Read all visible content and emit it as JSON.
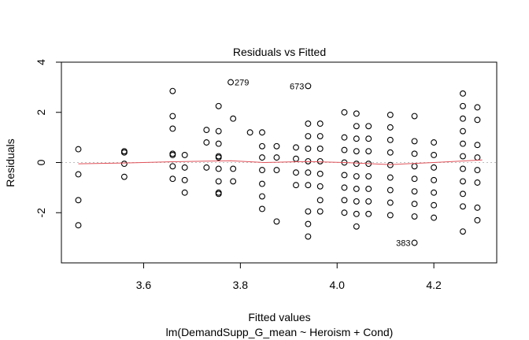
{
  "chart_data": {
    "type": "scatter",
    "title": "Residuals vs Fitted",
    "xlabel": "Fitted values",
    "subtitle": "lm(DemandSupp_G_mean ~ Heroism + Cond)",
    "ylabel": "Residuals",
    "xlim": [
      3.43,
      4.33
    ],
    "ylim": [
      -4.0,
      4.0
    ],
    "x_ticks": [
      3.6,
      3.8,
      4.0,
      4.2
    ],
    "x_tick_labels": [
      "3.6",
      "3.8",
      "4.0",
      "4.2"
    ],
    "y_ticks": [
      -2,
      0,
      2,
      4
    ],
    "y_tick_labels": [
      "-2",
      "0",
      "2",
      "4"
    ],
    "grid": false,
    "zero_line_color": "#bdbdbd",
    "smooth_color": "#e0525a",
    "columns": [
      {
        "x": 3.465,
        "y": [
          0.53,
          -0.47,
          -1.5,
          -2.5
        ]
      },
      {
        "x": 3.56,
        "y": [
          0.45,
          0.4,
          -0.05,
          -0.57
        ]
      },
      {
        "x": 3.66,
        "y": [
          2.85,
          1.85,
          1.35,
          0.35,
          0.3,
          -0.15,
          -0.65
        ]
      },
      {
        "x": 3.685,
        "y": [
          0.3,
          -0.2,
          -0.7,
          -1.2
        ]
      },
      {
        "x": 3.73,
        "y": [
          1.3,
          0.8,
          -0.2
        ]
      },
      {
        "x": 3.755,
        "y": [
          2.25,
          1.25,
          0.75,
          0.25,
          0.2,
          -0.25,
          -0.75,
          -1.2,
          -1.25
        ]
      },
      {
        "x": 3.785,
        "y": [
          1.75,
          -0.25,
          -0.75
        ]
      },
      {
        "x": 3.82,
        "y": [
          1.2
        ]
      },
      {
        "x": 3.845,
        "y": [
          1.2,
          0.65,
          0.2,
          -0.3,
          -0.85,
          -1.35,
          -1.85
        ]
      },
      {
        "x": 3.875,
        "y": [
          0.65,
          0.2,
          -0.3,
          -2.35
        ]
      },
      {
        "x": 3.915,
        "y": [
          0.6,
          0.15,
          -0.4,
          -0.9
        ]
      },
      {
        "x": 3.94,
        "y": [
          1.55,
          1.05,
          0.55,
          0.05,
          -0.4,
          -0.9,
          -1.95,
          -2.45,
          -2.95
        ]
      },
      {
        "x": 3.965,
        "y": [
          1.55,
          1.05,
          0.55,
          0.05,
          -0.45,
          -0.95,
          -1.5,
          -1.95
        ]
      },
      {
        "x": 4.015,
        "y": [
          2.0,
          1.0,
          0.5,
          0.0,
          -0.5,
          -1.0,
          -1.5,
          -2.0
        ]
      },
      {
        "x": 4.04,
        "y": [
          1.95,
          1.45,
          0.95,
          0.45,
          -0.05,
          -0.55,
          -1.05,
          -1.55,
          -2.05,
          -2.55
        ]
      },
      {
        "x": 4.065,
        "y": [
          1.45,
          0.95,
          0.45,
          -0.05,
          -0.55,
          -1.05,
          -1.55,
          -2.05
        ]
      },
      {
        "x": 4.11,
        "y": [
          1.9,
          1.4,
          0.9,
          0.4,
          -0.1,
          -0.6,
          -1.1,
          -1.6,
          -2.1
        ]
      },
      {
        "x": 4.16,
        "y": [
          1.85,
          0.85,
          0.35,
          -0.15,
          -0.65,
          -1.15,
          -1.65,
          -2.15
        ]
      },
      {
        "x": 4.2,
        "y": [
          0.8,
          0.3,
          -0.2,
          -0.7,
          -1.2,
          -1.7,
          -2.2
        ]
      },
      {
        "x": 4.26,
        "y": [
          2.75,
          2.25,
          1.75,
          1.25,
          0.75,
          0.25,
          -0.25,
          -0.75,
          -1.25,
          -1.75,
          -2.75
        ]
      },
      {
        "x": 4.29,
        "y": [
          2.2,
          1.7,
          0.7,
          0.2,
          -0.3,
          -0.8,
          -1.8,
          -2.3
        ]
      }
    ],
    "labeled_points": [
      {
        "label": "279",
        "x": 3.78,
        "y": 3.2
      },
      {
        "label": "673",
        "x": 3.94,
        "y": 3.05
      },
      {
        "label": "383",
        "x": 4.16,
        "y": -3.2
      }
    ],
    "smooth_line": [
      [
        3.465,
        -0.05
      ],
      [
        3.56,
        -0.02
      ],
      [
        3.66,
        0.03
      ],
      [
        3.78,
        0.07
      ],
      [
        3.85,
        0.0
      ],
      [
        3.94,
        0.04
      ],
      [
        4.015,
        0.0
      ],
      [
        4.11,
        -0.08
      ],
      [
        4.2,
        0.0
      ],
      [
        4.3,
        0.1
      ]
    ]
  }
}
